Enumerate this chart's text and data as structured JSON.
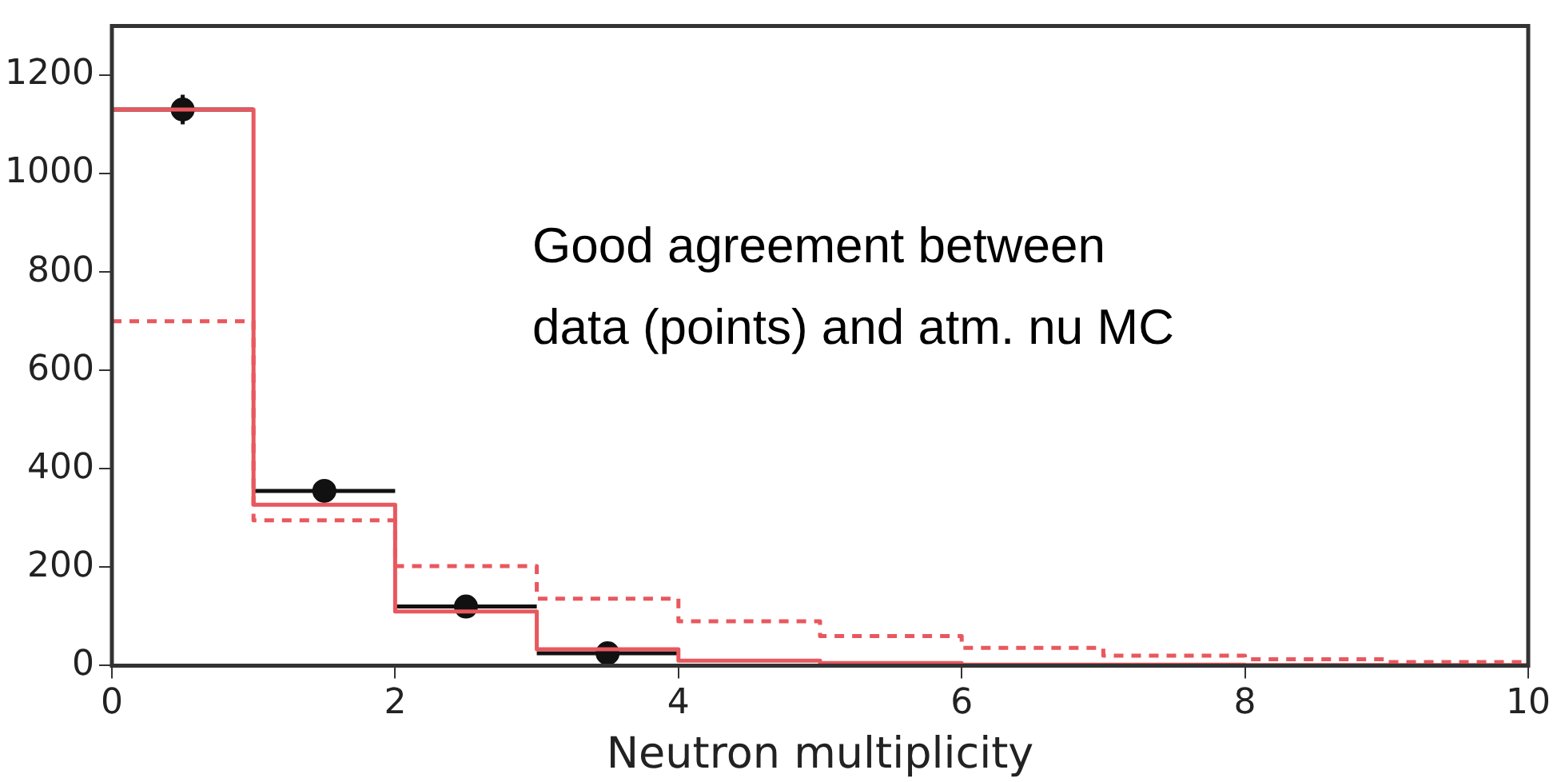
{
  "chart_data": {
    "type": "histogram",
    "xlabel": "Neutron multiplicity",
    "annotations": [
      "Good agreement between data (points) and atm. nu MC"
    ],
    "bins": [
      0,
      1,
      2,
      3,
      4,
      5,
      6,
      7,
      8,
      9,
      10
    ],
    "series": [
      {
        "color": "#e8585e",
        "values": [
          1130,
          327,
          110,
          33,
          10,
          5,
          2,
          2,
          1,
          1
        ]
      },
      {
        "color": "#e8585e",
        "line_style": "dashed",
        "values": [
          700,
          295,
          202,
          136,
          90,
          60,
          36,
          20,
          13,
          7
        ]
      },
      {
        "type": "scatter",
        "color": "#111111",
        "x": [
          0.5,
          1.5,
          2.5,
          3.5
        ],
        "values": [
          1130,
          355,
          120,
          25
        ],
        "errors": [
          30,
          20,
          12,
          10
        ],
        "xerrors": [
          0.5,
          0.5,
          0.5,
          0.5
        ]
      }
    ],
    "xlim": [
      0,
      10
    ],
    "xticks": [
      0,
      2,
      4,
      6,
      8,
      10
    ],
    "ylim": [
      0,
      1300
    ],
    "yticks": [
      0,
      200,
      400,
      600,
      800,
      1000,
      1200
    ],
    "grid": false,
    "legend": false,
    "marker": "circle"
  }
}
